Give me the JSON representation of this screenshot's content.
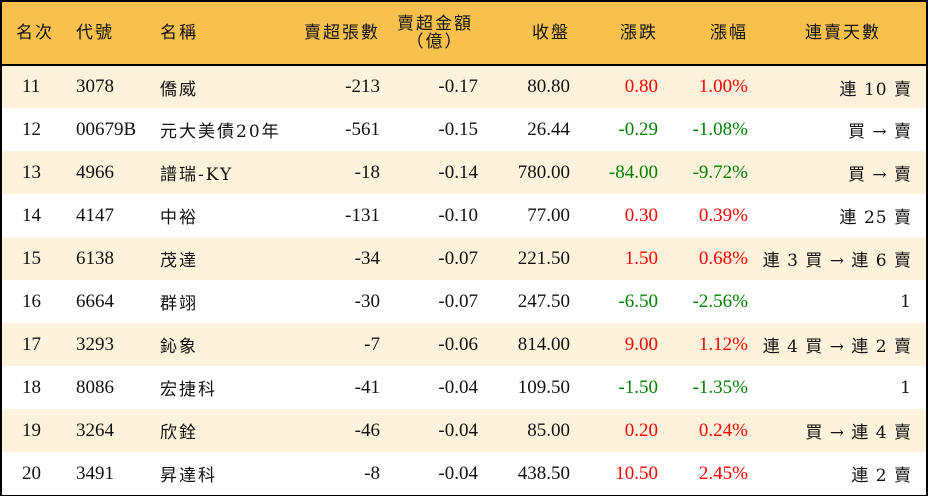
{
  "table": {
    "headers": {
      "rank": "名次",
      "code": "代號",
      "name": "名稱",
      "net_sell_volume": "賣超張數",
      "net_sell_amount_line1": "賣超金額",
      "net_sell_amount_line2": "（億）",
      "close": "收盤",
      "change": "漲跌",
      "change_pct": "漲幅",
      "streak": "連賣天數"
    },
    "colors": {
      "header_bg": "#f8c14d",
      "row_odd_bg": "#fdf3dc",
      "row_even_bg": "#ffffff",
      "up": "#ff0000",
      "down": "#008000"
    },
    "rows": [
      {
        "rank": "11",
        "code": "3078",
        "name": "僑威",
        "volume": "-213",
        "amount": "-0.17",
        "close": "80.80",
        "change": "0.80",
        "change_pct": "1.00%",
        "direction": "up",
        "streak": "連 10 賣"
      },
      {
        "rank": "12",
        "code": "00679B",
        "name": "元大美債20年",
        "volume": "-561",
        "amount": "-0.15",
        "close": "26.44",
        "change": "-0.29",
        "change_pct": "-1.08%",
        "direction": "down",
        "streak": "買 → 賣"
      },
      {
        "rank": "13",
        "code": "4966",
        "name": "譜瑞-KY",
        "volume": "-18",
        "amount": "-0.14",
        "close": "780.00",
        "change": "-84.00",
        "change_pct": "-9.72%",
        "direction": "down",
        "streak": "買 → 賣"
      },
      {
        "rank": "14",
        "code": "4147",
        "name": "中裕",
        "volume": "-131",
        "amount": "-0.10",
        "close": "77.00",
        "change": "0.30",
        "change_pct": "0.39%",
        "direction": "up",
        "streak": "連 25 賣"
      },
      {
        "rank": "15",
        "code": "6138",
        "name": "茂達",
        "volume": "-34",
        "amount": "-0.07",
        "close": "221.50",
        "change": "1.50",
        "change_pct": "0.68%",
        "direction": "up",
        "streak": "連 3 買 → 連 6 賣"
      },
      {
        "rank": "16",
        "code": "6664",
        "name": "群翊",
        "volume": "-30",
        "amount": "-0.07",
        "close": "247.50",
        "change": "-6.50",
        "change_pct": "-2.56%",
        "direction": "down",
        "streak": "1"
      },
      {
        "rank": "17",
        "code": "3293",
        "name": "鈊象",
        "volume": "-7",
        "amount": "-0.06",
        "close": "814.00",
        "change": "9.00",
        "change_pct": "1.12%",
        "direction": "up",
        "streak": "連 4 買 → 連 2 賣"
      },
      {
        "rank": "18",
        "code": "8086",
        "name": "宏捷科",
        "volume": "-41",
        "amount": "-0.04",
        "close": "109.50",
        "change": "-1.50",
        "change_pct": "-1.35%",
        "direction": "down",
        "streak": "1"
      },
      {
        "rank": "19",
        "code": "3264",
        "name": "欣銓",
        "volume": "-46",
        "amount": "-0.04",
        "close": "85.00",
        "change": "0.20",
        "change_pct": "0.24%",
        "direction": "up",
        "streak": "買 → 連 4 賣"
      },
      {
        "rank": "20",
        "code": "3491",
        "name": "昇達科",
        "volume": "-8",
        "amount": "-0.04",
        "close": "438.50",
        "change": "10.50",
        "change_pct": "2.45%",
        "direction": "up",
        "streak": "連 2 賣"
      }
    ]
  }
}
